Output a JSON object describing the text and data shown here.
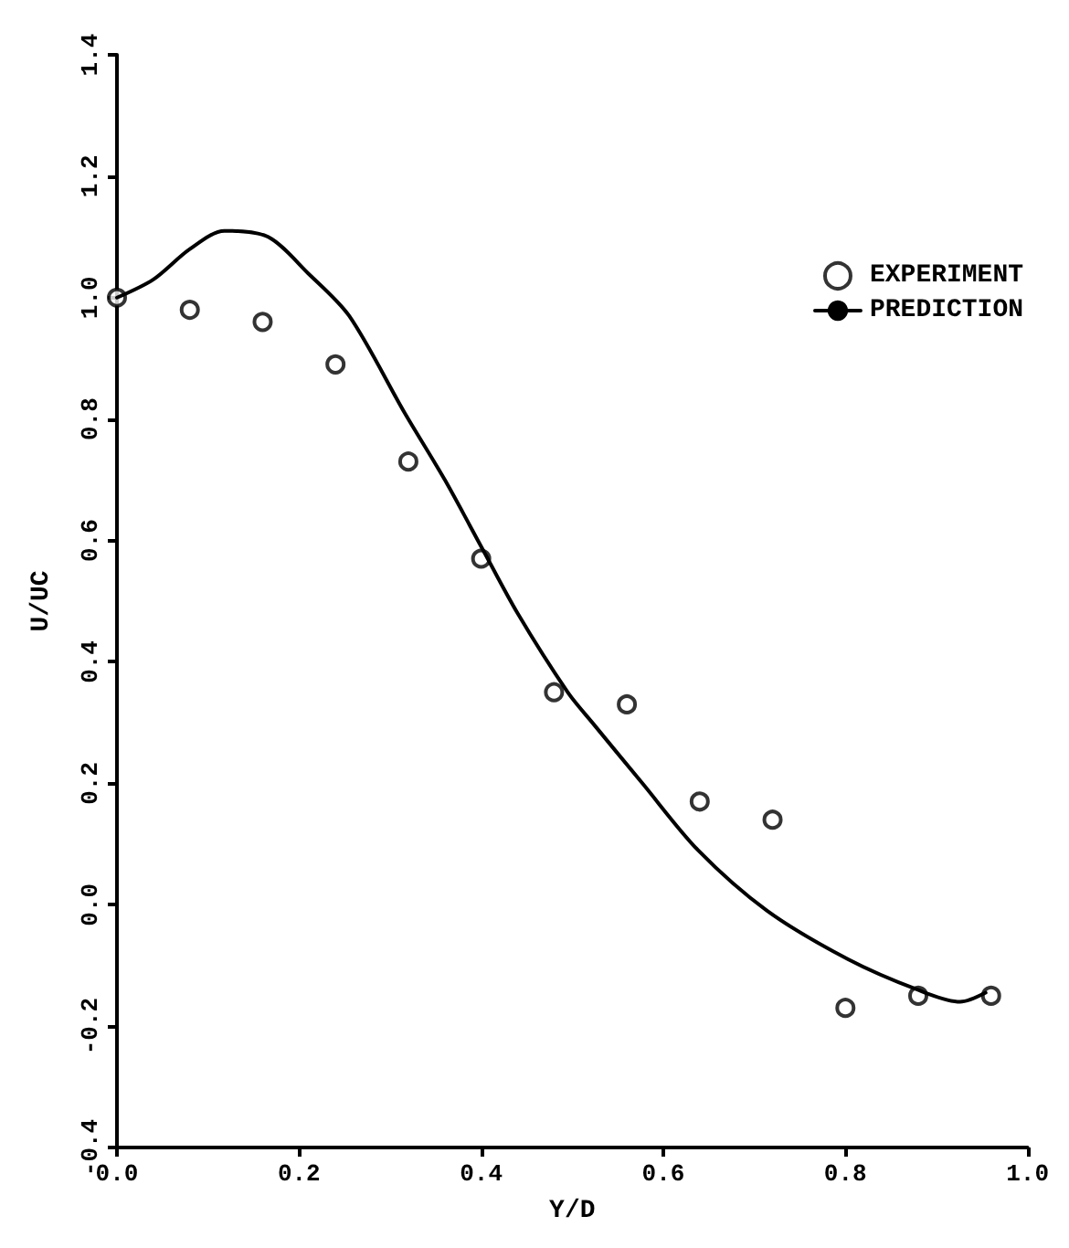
{
  "chart_data": {
    "type": "scatter",
    "xlabel": "Y/D",
    "ylabel": "U/UC",
    "xlim": [
      0,
      1.0
    ],
    "xticks": [
      {
        "value": 0,
        "label": "0.0"
      },
      {
        "value": 0.2,
        "label": "0.2"
      },
      {
        "value": 0.4,
        "label": "0.4"
      },
      {
        "value": 0.6,
        "label": "0.6"
      },
      {
        "value": 0.8,
        "label": "0.8"
      },
      {
        "value": 1.0,
        "label": "1.0"
      }
    ],
    "ylim": [
      -0.4,
      1.4
    ],
    "yticks": [
      {
        "value": -0.4,
        "label": "-0.4"
      },
      {
        "value": -0.2,
        "label": "-0.2"
      },
      {
        "value": 0,
        "label": "0.0"
      },
      {
        "value": 0.2,
        "label": "0.2"
      },
      {
        "value": 0.4,
        "label": "0.4"
      },
      {
        "value": 0.6,
        "label": "0.6"
      },
      {
        "value": 0.8,
        "label": "0.8"
      },
      {
        "value": 1.0,
        "label": "1.0"
      },
      {
        "value": 1.2,
        "label": "1.2"
      },
      {
        "value": 1.4,
        "label": "1.4"
      }
    ],
    "legend": "top right",
    "series": [
      {
        "name": "EXPERIMENT",
        "marker": "circle",
        "color": "#000000",
        "x": [
          0,
          0.08,
          0.16,
          0.24,
          0.32,
          0.4,
          0.48,
          0.56,
          0.64,
          0.72,
          0.8,
          0.88,
          0.96
        ],
        "values": [
          1.0,
          0.98,
          0.96,
          0.89,
          0.73,
          0.57,
          0.35,
          0.33,
          0.17,
          0.14,
          -0.17,
          -0.15,
          -0.15
        ]
      },
      {
        "name": "PREDICTION",
        "type": "line",
        "marker": "none",
        "line_style": "solid",
        "color": "#000000",
        "x": [
          0,
          0.04,
          0.08,
          0.118,
          0.166,
          0.21,
          0.255,
          0.316,
          0.36,
          0.4,
          0.44,
          0.495,
          0.522,
          0.577,
          0.638,
          0.714,
          0.803,
          0.879,
          0.926,
          0.954
        ],
        "values": [
          1.0,
          1.03,
          1.08,
          1.11,
          1.1,
          1.04,
          0.97,
          0.81,
          0.7,
          0.59,
          0.48,
          0.35,
          0.3,
          0.2,
          0.09,
          -0.01,
          -0.09,
          -0.14,
          -0.16,
          -0.145
        ]
      }
    ]
  }
}
